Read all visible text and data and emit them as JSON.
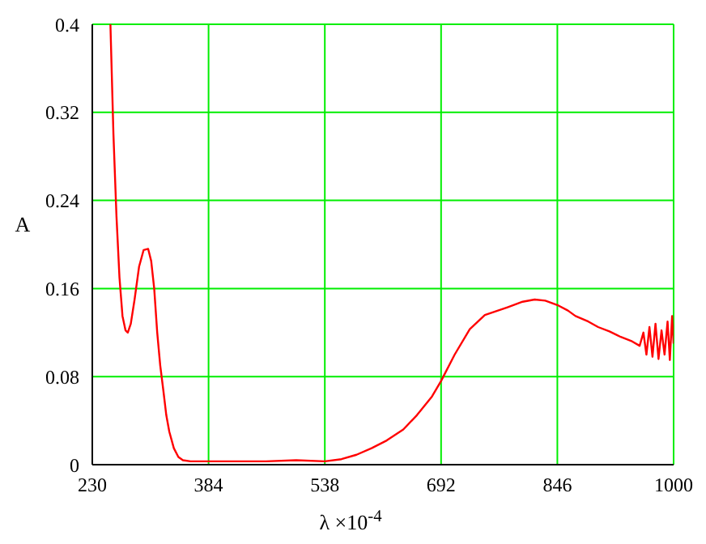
{
  "chart_data": {
    "type": "line",
    "xlabel": "λ ×10$^{-4}$",
    "ylabel": "A",
    "x": [
      254,
      258,
      262,
      266,
      270,
      274,
      277,
      281,
      286,
      292,
      298,
      304,
      308,
      312,
      316,
      320,
      324,
      328,
      332,
      338,
      344,
      350,
      360,
      384,
      420,
      460,
      500,
      538,
      560,
      580,
      600,
      620,
      642,
      660,
      680,
      692,
      710,
      730,
      750,
      780,
      800,
      816,
      830,
      846,
      860,
      870,
      887,
      900,
      915,
      930,
      945,
      955,
      960,
      964,
      968,
      972,
      976,
      980,
      984,
      988,
      992,
      995,
      998,
      1000
    ],
    "series": [
      {
        "color": "#ff0000",
        "values": [
          0.4,
          0.3,
          0.226,
          0.17,
          0.135,
          0.122,
          0.12,
          0.128,
          0.15,
          0.18,
          0.195,
          0.196,
          0.185,
          0.16,
          0.12,
          0.09,
          0.068,
          0.045,
          0.03,
          0.015,
          0.007,
          0.004,
          0.003,
          0.003,
          0.003,
          0.003,
          0.004,
          0.003,
          0.005,
          0.009,
          0.015,
          0.022,
          0.032,
          0.045,
          0.062,
          0.076,
          0.1,
          0.123,
          0.136,
          0.143,
          0.148,
          0.15,
          0.149,
          0.145,
          0.14,
          0.135,
          0.13,
          0.125,
          0.121,
          0.116,
          0.112,
          0.108,
          0.12,
          0.1,
          0.125,
          0.098,
          0.128,
          0.096,
          0.122,
          0.1,
          0.13,
          0.095,
          0.135,
          0.11
        ]
      }
    ],
    "xlim": [
      230,
      1000
    ],
    "xticks": [
      230,
      384,
      538,
      692,
      846,
      1000
    ],
    "ylim": [
      0,
      0.4
    ],
    "yticks": [
      0,
      0.08,
      0.16,
      0.24,
      0.32,
      0.4
    ],
    "grid": true,
    "legend": false,
    "marker": "none",
    "line_style": "solid"
  }
}
